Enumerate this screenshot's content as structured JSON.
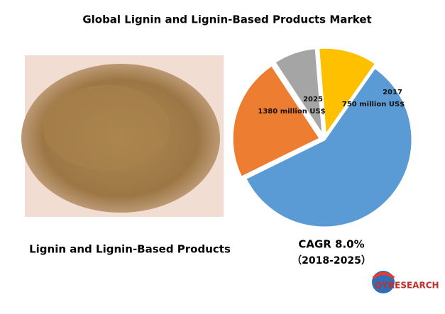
{
  "chart_data": {
    "type": "pie",
    "title": "Global Lignin and Lignin-Based Products Market",
    "values": [
      58,
      23,
      8,
      11
    ],
    "colors": [
      "#5b9bd5",
      "#ed7d31",
      "#a5a5a5",
      "#ffc000"
    ],
    "annotations": [
      "2025",
      "1380 million US$",
      "2017",
      "750 million US$"
    ],
    "image_caption": "Lignin and Lignin-Based Products",
    "cagr": "CAGR 8.0%",
    "period": "（2018-2025）",
    "logo": "QYRESEARCH"
  }
}
